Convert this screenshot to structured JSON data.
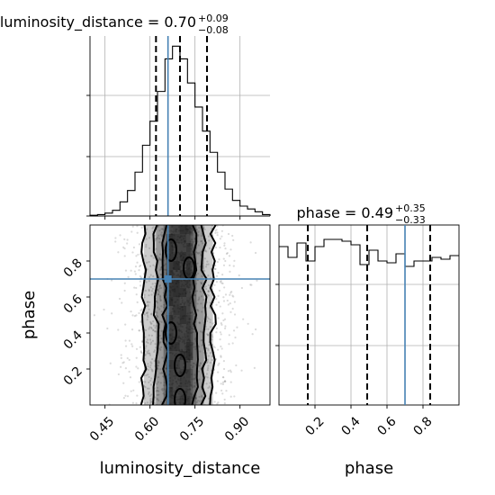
{
  "chart_data": [
    {
      "type": "histogram",
      "panel": "luminosity_distance marginal",
      "title": {
        "main": "luminosity_distance = 0.70",
        "sup": "+0.09",
        "sub": "−0.08"
      },
      "xlim": [
        0.4,
        1.0
      ],
      "xticks": [
        0.45,
        0.6,
        0.75,
        0.9
      ],
      "bins": [
        0.4,
        0.425,
        0.45,
        0.475,
        0.5,
        0.525,
        0.55,
        0.575,
        0.6,
        0.625,
        0.65,
        0.675,
        0.7,
        0.725,
        0.75,
        0.775,
        0.8,
        0.825,
        0.85,
        0.875,
        0.9,
        0.925,
        0.95,
        0.975,
        1.0
      ],
      "counts": [
        0.5,
        1,
        2,
        4,
        10,
        18,
        31,
        50,
        67,
        88,
        111,
        120,
        111,
        94,
        77,
        60,
        45,
        31,
        19,
        11,
        7,
        5,
        3,
        1
      ],
      "quantiles": [
        0.62,
        0.7,
        0.79
      ],
      "truth": 0.66
    },
    {
      "type": "histogram",
      "panel": "phase marginal",
      "title": {
        "main": "phase = 0.49",
        "sup": "+0.35",
        "sub": "−0.33"
      },
      "xlim": [
        0.0,
        1.0
      ],
      "xticks": [
        0.2,
        0.4,
        0.6,
        0.8
      ],
      "xlabels": [
        "0.2",
        "0.4",
        "0.6",
        "0.8"
      ],
      "bins": [
        0.0,
        0.05,
        0.1,
        0.15,
        0.2,
        0.25,
        0.3,
        0.35,
        0.4,
        0.45,
        0.5,
        0.55,
        0.6,
        0.65,
        0.7,
        0.75,
        0.8,
        0.85,
        0.9,
        0.95,
        1.0
      ],
      "counts": [
        0.88,
        0.82,
        0.9,
        0.8,
        0.88,
        0.92,
        0.92,
        0.91,
        0.89,
        0.78,
        0.86,
        0.8,
        0.79,
        0.84,
        0.77,
        0.8,
        0.8,
        0.82,
        0.81,
        0.83
      ],
      "quantiles": [
        0.16,
        0.49,
        0.84
      ],
      "truth": 0.7
    },
    {
      "type": "scatter-contour",
      "panel": "luminosity_distance vs phase",
      "xlabel": "luminosity_distance",
      "ylabel": "phase",
      "xlim": [
        0.4,
        1.0
      ],
      "ylim": [
        0.0,
        1.0
      ],
      "xticks": [
        0.45,
        0.6,
        0.75,
        0.9
      ],
      "xticklabels": [
        "0.45",
        "0.60",
        "0.75",
        "0.90"
      ],
      "yticks": [
        0.2,
        0.4,
        0.6,
        0.8
      ],
      "yticklabels": [
        "0.2",
        "0.4",
        "0.6",
        "0.8"
      ],
      "contour_levels": [
        {
          "label": "outer",
          "x_range": [
            0.58,
            0.81
          ]
        },
        {
          "label": "middle",
          "x_range": [
            0.62,
            0.78
          ]
        },
        {
          "label": "inner",
          "x_range": [
            0.65,
            0.75
          ]
        }
      ],
      "truth": {
        "x": 0.66,
        "y": 0.7
      },
      "grid": true
    }
  ],
  "colors": {
    "truth": "#4682b4",
    "lines": "#000000",
    "grid": "#b0b0b0"
  }
}
